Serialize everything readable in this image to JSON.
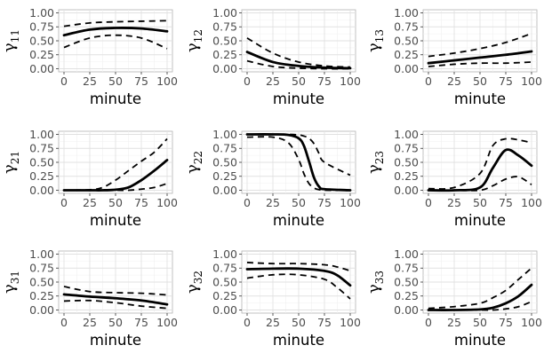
{
  "chart_data": {
    "type": "line",
    "layout": "3x3 grid",
    "panels": [
      {
        "row": 1,
        "col": 1,
        "ylabel_symbol": "γ",
        "ylabel_sub": "11",
        "xlabel": "minute",
        "x": [
          0,
          25,
          50,
          75,
          100
        ],
        "series": [
          {
            "name": "estimate",
            "style": "solid",
            "values": [
              0.6,
              0.7,
              0.73,
              0.72,
              0.67
            ]
          },
          {
            "name": "upper",
            "style": "dashed",
            "values": [
              0.76,
              0.82,
              0.84,
              0.85,
              0.86
            ]
          },
          {
            "name": "lower",
            "style": "dashed",
            "values": [
              0.38,
              0.55,
              0.6,
              0.55,
              0.36
            ]
          }
        ]
      },
      {
        "row": 1,
        "col": 2,
        "ylabel_symbol": "γ",
        "ylabel_sub": "12",
        "xlabel": "minute",
        "x": [
          0,
          25,
          50,
          75,
          100
        ],
        "series": [
          {
            "name": "estimate",
            "style": "solid",
            "values": [
              0.3,
              0.12,
              0.05,
              0.02,
              0.01
            ]
          },
          {
            "name": "upper",
            "style": "dashed",
            "values": [
              0.55,
              0.28,
              0.12,
              0.05,
              0.03
            ]
          },
          {
            "name": "lower",
            "style": "dashed",
            "values": [
              0.14,
              0.04,
              0.01,
              0.0,
              0.0
            ]
          }
        ]
      },
      {
        "row": 1,
        "col": 3,
        "ylabel_symbol": "γ",
        "ylabel_sub": "13",
        "xlabel": "minute",
        "x": [
          0,
          25,
          50,
          75,
          100
        ],
        "series": [
          {
            "name": "estimate",
            "style": "solid",
            "values": [
              0.1,
              0.15,
              0.2,
              0.25,
              0.31
            ]
          },
          {
            "name": "upper",
            "style": "dashed",
            "values": [
              0.22,
              0.28,
              0.36,
              0.47,
              0.63
            ]
          },
          {
            "name": "lower",
            "style": "dashed",
            "values": [
              0.04,
              0.08,
              0.1,
              0.1,
              0.12
            ]
          }
        ]
      },
      {
        "row": 2,
        "col": 1,
        "ylabel_symbol": "γ",
        "ylabel_sub": "21",
        "xlabel": "minute",
        "x": [
          0,
          25,
          37.5,
          50,
          62.5,
          75,
          87.5,
          100
        ],
        "series": [
          {
            "name": "estimate",
            "style": "solid",
            "values": [
              0.0,
              0.0,
              0.0,
              0.01,
              0.05,
              0.18,
              0.35,
              0.54
            ]
          },
          {
            "name": "upper",
            "style": "dashed",
            "values": [
              0.0,
              0.01,
              0.05,
              0.18,
              0.35,
              0.52,
              0.68,
              0.92
            ]
          },
          {
            "name": "lower",
            "style": "dashed",
            "values": [
              0.0,
              0.0,
              0.0,
              0.0,
              0.0,
              0.02,
              0.05,
              0.12
            ]
          }
        ]
      },
      {
        "row": 2,
        "col": 2,
        "ylabel_symbol": "γ",
        "ylabel_sub": "22",
        "xlabel": "minute",
        "x": [
          0,
          25,
          40,
          50,
          55,
          60,
          65,
          70,
          75,
          100
        ],
        "series": [
          {
            "name": "estimate",
            "style": "solid",
            "values": [
              1.0,
              1.0,
              0.99,
              0.93,
              0.8,
              0.52,
              0.22,
              0.06,
              0.02,
              0.0
            ]
          },
          {
            "name": "upper",
            "style": "dashed",
            "values": [
              1.0,
              1.0,
              1.0,
              0.99,
              0.97,
              0.93,
              0.83,
              0.65,
              0.5,
              0.27
            ]
          },
          {
            "name": "lower",
            "style": "dashed",
            "values": [
              0.95,
              0.95,
              0.85,
              0.55,
              0.3,
              0.12,
              0.04,
              0.01,
              0.0,
              0.0
            ]
          }
        ]
      },
      {
        "row": 2,
        "col": 3,
        "ylabel_symbol": "γ",
        "ylabel_sub": "23",
        "xlabel": "minute",
        "x": [
          0,
          25,
          50,
          62.5,
          75,
          87.5,
          100
        ],
        "series": [
          {
            "name": "estimate",
            "style": "solid",
            "values": [
              0.0,
              0.0,
              0.05,
              0.4,
              0.72,
              0.62,
              0.44
            ]
          },
          {
            "name": "upper",
            "style": "dashed",
            "values": [
              0.03,
              0.05,
              0.3,
              0.8,
              0.92,
              0.9,
              0.85
            ]
          },
          {
            "name": "lower",
            "style": "dashed",
            "values": [
              0.0,
              0.0,
              0.0,
              0.08,
              0.2,
              0.24,
              0.1
            ]
          }
        ]
      },
      {
        "row": 3,
        "col": 1,
        "ylabel_symbol": "γ",
        "ylabel_sub": "31",
        "xlabel": "minute",
        "x": [
          0,
          25,
          50,
          75,
          100
        ],
        "series": [
          {
            "name": "estimate",
            "style": "solid",
            "values": [
              0.28,
              0.24,
              0.21,
              0.17,
              0.1
            ]
          },
          {
            "name": "upper",
            "style": "dashed",
            "values": [
              0.42,
              0.33,
              0.31,
              0.3,
              0.27
            ]
          },
          {
            "name": "lower",
            "style": "dashed",
            "values": [
              0.16,
              0.17,
              0.13,
              0.07,
              0.03
            ]
          }
        ]
      },
      {
        "row": 3,
        "col": 2,
        "ylabel_symbol": "γ",
        "ylabel_sub": "32",
        "xlabel": "minute",
        "x": [
          0,
          25,
          50,
          75,
          87.5,
          100
        ],
        "series": [
          {
            "name": "estimate",
            "style": "solid",
            "values": [
              0.73,
              0.74,
              0.74,
              0.7,
              0.62,
              0.44
            ]
          },
          {
            "name": "upper",
            "style": "dashed",
            "values": [
              0.85,
              0.83,
              0.83,
              0.81,
              0.77,
              0.7
            ]
          },
          {
            "name": "lower",
            "style": "dashed",
            "values": [
              0.57,
              0.63,
              0.63,
              0.55,
              0.4,
              0.2
            ]
          }
        ]
      },
      {
        "row": 3,
        "col": 3,
        "ylabel_symbol": "γ",
        "ylabel_sub": "33",
        "xlabel": "minute",
        "x": [
          0,
          25,
          50,
          62.5,
          75,
          87.5,
          100
        ],
        "series": [
          {
            "name": "estimate",
            "style": "solid",
            "values": [
              0.0,
              0.0,
              0.01,
              0.04,
              0.12,
              0.25,
              0.45
            ]
          },
          {
            "name": "upper",
            "style": "dashed",
            "values": [
              0.03,
              0.06,
              0.12,
              0.22,
              0.35,
              0.55,
              0.75
            ]
          },
          {
            "name": "lower",
            "style": "dashed",
            "values": [
              0.0,
              0.0,
              0.0,
              0.0,
              0.02,
              0.06,
              0.15
            ]
          }
        ]
      }
    ],
    "xlim": [
      0,
      100
    ],
    "ylim": [
      0,
      1
    ],
    "xticks": [
      0,
      25,
      50,
      75,
      100
    ],
    "yticks": [
      0,
      0.25,
      0.5,
      0.75,
      1
    ],
    "xtick_labels": [
      "0",
      "25",
      "50",
      "75",
      "100"
    ],
    "ytick_labels": [
      "0.00",
      "0.25",
      "0.50",
      "0.75",
      "1.00"
    ],
    "grid": true
  }
}
